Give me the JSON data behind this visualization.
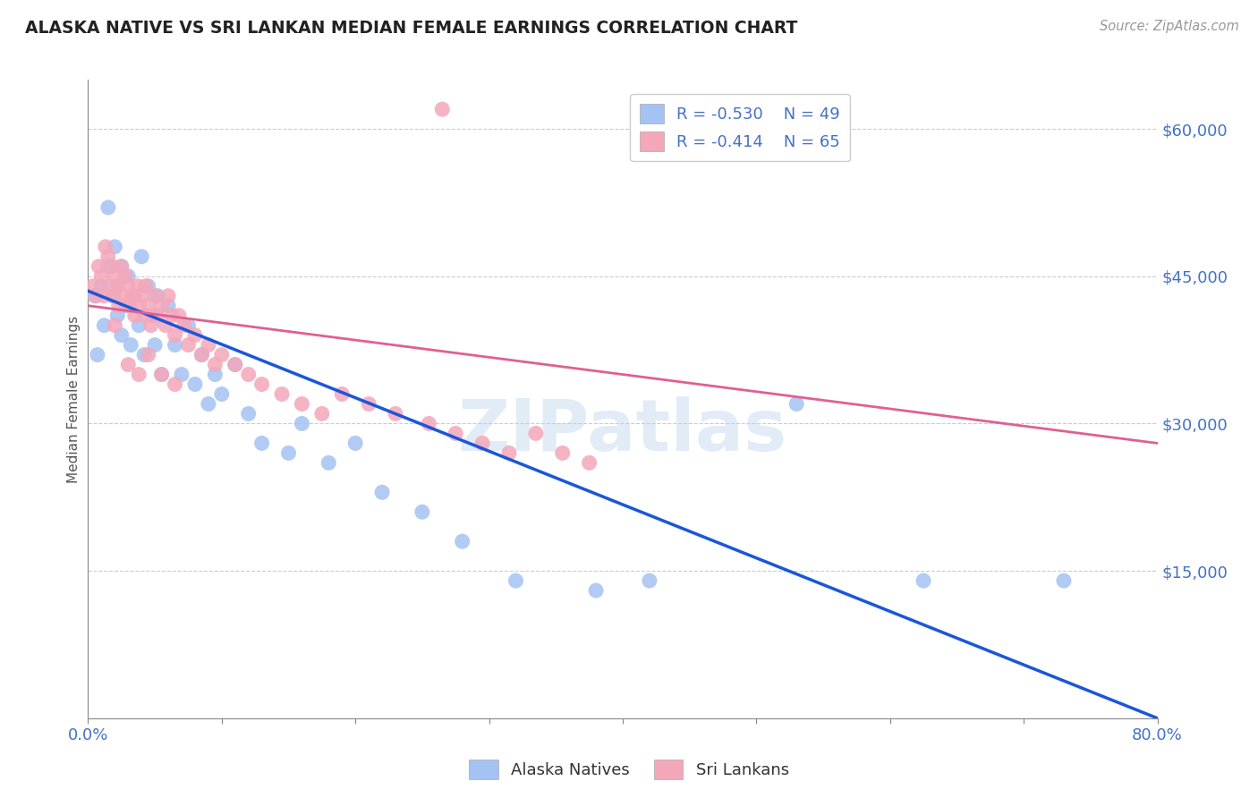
{
  "title": "ALASKA NATIVE VS SRI LANKAN MEDIAN FEMALE EARNINGS CORRELATION CHART",
  "source_text": "Source: ZipAtlas.com",
  "ylabel": "Median Female Earnings",
  "xlim": [
    0,
    0.8
  ],
  "ylim": [
    0,
    65000
  ],
  "yticks": [
    0,
    15000,
    30000,
    45000,
    60000
  ],
  "ytick_labels": [
    "",
    "$15,000",
    "$30,000",
    "$45,000",
    "$60,000"
  ],
  "xticks": [
    0.0,
    0.1,
    0.2,
    0.3,
    0.4,
    0.5,
    0.6,
    0.7,
    0.8
  ],
  "xtick_labels": [
    "0.0%",
    "",
    "",
    "",
    "",
    "",
    "",
    "",
    "80.0%"
  ],
  "legend_r_blue": "R = -0.530",
  "legend_n_blue": "N = 49",
  "legend_r_pink": "R = -0.414",
  "legend_n_pink": "N = 65",
  "blue_color": "#a4c2f4",
  "pink_color": "#f4a7b9",
  "blue_line_color": "#1a56db",
  "pink_line_color": "#e06090",
  "axis_color": "#4472c4",
  "watermark": "ZIPatlas",
  "alaska_x": [
    0.005,
    0.007,
    0.01,
    0.012,
    0.015,
    0.015,
    0.018,
    0.02,
    0.022,
    0.022,
    0.025,
    0.025,
    0.028,
    0.03,
    0.032,
    0.035,
    0.038,
    0.04,
    0.042,
    0.045,
    0.048,
    0.05,
    0.052,
    0.055,
    0.06,
    0.065,
    0.07,
    0.075,
    0.08,
    0.085,
    0.09,
    0.095,
    0.1,
    0.11,
    0.12,
    0.13,
    0.15,
    0.16,
    0.18,
    0.2,
    0.22,
    0.25,
    0.28,
    0.32,
    0.38,
    0.42,
    0.53,
    0.625,
    0.73
  ],
  "alaska_y": [
    43000,
    37000,
    44000,
    40000,
    52000,
    46000,
    43000,
    48000,
    44000,
    41000,
    46000,
    39000,
    42000,
    45000,
    38000,
    43000,
    40000,
    47000,
    37000,
    44000,
    41000,
    38000,
    43000,
    35000,
    42000,
    38000,
    35000,
    40000,
    34000,
    37000,
    32000,
    35000,
    33000,
    36000,
    31000,
    28000,
    27000,
    30000,
    26000,
    28000,
    23000,
    21000,
    18000,
    14000,
    13000,
    14000,
    32000,
    14000,
    14000
  ],
  "srilanka_x": [
    0.004,
    0.006,
    0.008,
    0.01,
    0.012,
    0.013,
    0.015,
    0.016,
    0.018,
    0.019,
    0.02,
    0.022,
    0.023,
    0.025,
    0.026,
    0.028,
    0.03,
    0.031,
    0.033,
    0.035,
    0.037,
    0.038,
    0.04,
    0.042,
    0.043,
    0.045,
    0.047,
    0.05,
    0.052,
    0.055,
    0.058,
    0.06,
    0.063,
    0.065,
    0.068,
    0.072,
    0.075,
    0.08,
    0.085,
    0.09,
    0.095,
    0.1,
    0.11,
    0.12,
    0.13,
    0.145,
    0.16,
    0.175,
    0.19,
    0.21,
    0.23,
    0.255,
    0.275,
    0.295,
    0.315,
    0.335,
    0.355,
    0.375,
    0.265,
    0.03,
    0.038,
    0.045,
    0.055,
    0.065,
    0.02
  ],
  "srilanka_y": [
    44000,
    43000,
    46000,
    45000,
    43000,
    48000,
    47000,
    44000,
    46000,
    43000,
    45000,
    44000,
    42000,
    46000,
    43000,
    45000,
    44000,
    42000,
    43000,
    41000,
    44000,
    42000,
    43000,
    41000,
    44000,
    42000,
    40000,
    43000,
    41000,
    42000,
    40000,
    43000,
    41000,
    39000,
    41000,
    40000,
    38000,
    39000,
    37000,
    38000,
    36000,
    37000,
    36000,
    35000,
    34000,
    33000,
    32000,
    31000,
    33000,
    32000,
    31000,
    30000,
    29000,
    28000,
    27000,
    29000,
    27000,
    26000,
    62000,
    36000,
    35000,
    37000,
    35000,
    34000,
    40000
  ],
  "blue_line_x0": 0.0,
  "blue_line_y0": 43500,
  "blue_line_x1": 0.8,
  "blue_line_y1": 0,
  "pink_line_x0": 0.0,
  "pink_line_y0": 42000,
  "pink_line_x1": 0.8,
  "pink_line_y1": 28000
}
